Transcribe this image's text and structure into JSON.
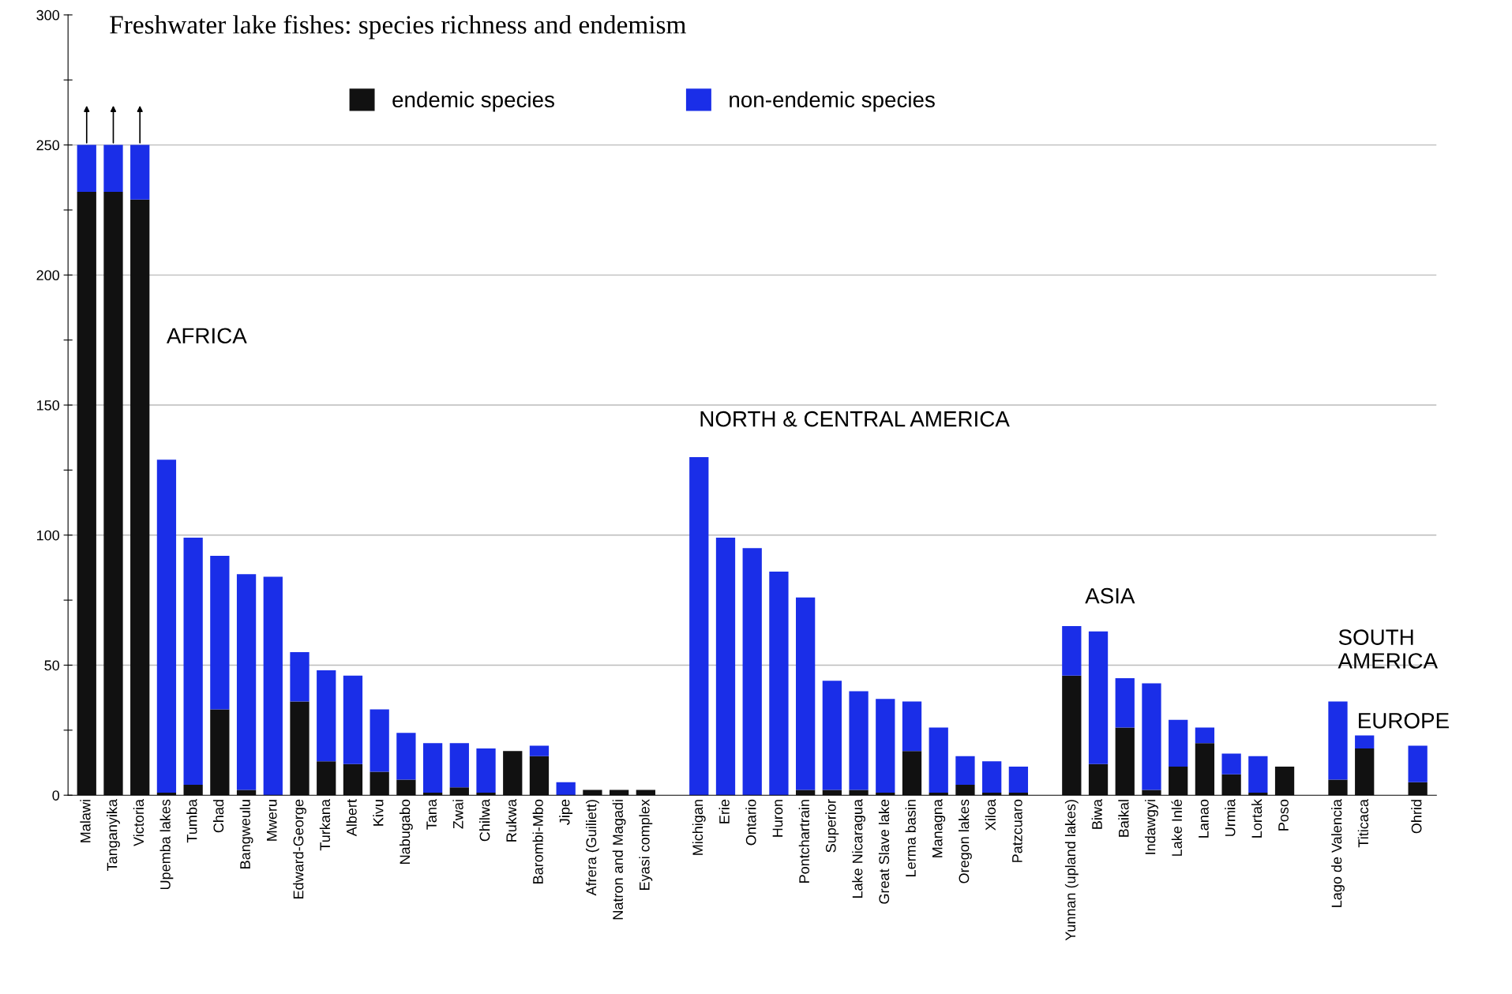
{
  "chart_data": {
    "type": "bar",
    "stacked": true,
    "title": "Freshwater lake fishes: species richness and endemism",
    "categories": [
      "Malawi",
      "Tanganyika",
      "Victoria",
      "Upemba lakes",
      "Tumba",
      "Chad",
      "Bangweulu",
      "Mweru",
      "Edward-George",
      "Turkana",
      "Albert",
      "Kivu",
      "Nabugabo",
      "Tana",
      "Zwai",
      "Chilwa",
      "Rukwa",
      "Barombi-Mbo",
      "Jipe",
      "Afrera (Guiliett)",
      "Natron and Magadi",
      "Eyasi complex",
      null,
      "Michigan",
      "Erie",
      "Ontario",
      "Huron",
      "Pontchartrain",
      "Superior",
      "Lake Nicaragua",
      "Great Slave lake",
      "Lerma basin",
      "Managna",
      "Oregon lakes",
      "Xiloa",
      "Patzcuaro",
      null,
      "Yunnan (upland lakes)",
      "Biwa",
      "Baikal",
      "Indawgyi",
      "Lake Inlé",
      "Lanao",
      "Urmia",
      "Lortak",
      "Poso",
      null,
      "Lago de Valencia",
      "Titicaca",
      null,
      "Ohrid"
    ],
    "series": [
      {
        "name": "endemic species",
        "color": "#111111",
        "values": [
          232,
          232,
          229,
          1,
          4,
          33,
          2,
          0,
          36,
          13,
          12,
          9,
          6,
          1,
          3,
          1,
          17,
          15,
          0,
          2,
          2,
          2,
          null,
          0,
          0,
          0,
          0,
          2,
          2,
          2,
          1,
          17,
          1,
          4,
          1,
          1,
          null,
          46,
          12,
          26,
          2,
          11,
          20,
          8,
          1,
          11,
          null,
          6,
          18,
          null,
          5
        ]
      },
      {
        "name": "non-endemic species",
        "color": "#1a2ee8",
        "values": [
          18,
          18,
          21,
          128,
          95,
          59,
          83,
          84,
          19,
          35,
          34,
          24,
          18,
          19,
          17,
          17,
          0,
          4,
          5,
          0,
          0,
          0,
          null,
          130,
          99,
          95,
          86,
          74,
          42,
          38,
          36,
          19,
          25,
          11,
          12,
          10,
          null,
          19,
          51,
          19,
          41,
          18,
          6,
          8,
          14,
          0,
          null,
          30,
          5,
          null,
          14
        ]
      }
    ],
    "ylim": [
      0,
      300
    ],
    "yticks": [
      0,
      {
        "value": 25,
        "label": null
      },
      50,
      {
        "value": 75,
        "label": null
      },
      100,
      {
        "value": 125,
        "label": null
      },
      150,
      {
        "value": 175,
        "label": null
      },
      200,
      {
        "value": 225,
        "label": null
      },
      250,
      {
        "value": 275,
        "label": null
      },
      300
    ],
    "grid": "y",
    "legend": "top",
    "annotations": [
      "AFRICA",
      "NORTH & CENTRAL AMERICA",
      "ASIA",
      "SOUTH\nAMERICA",
      "EUROPE"
    ]
  }
}
